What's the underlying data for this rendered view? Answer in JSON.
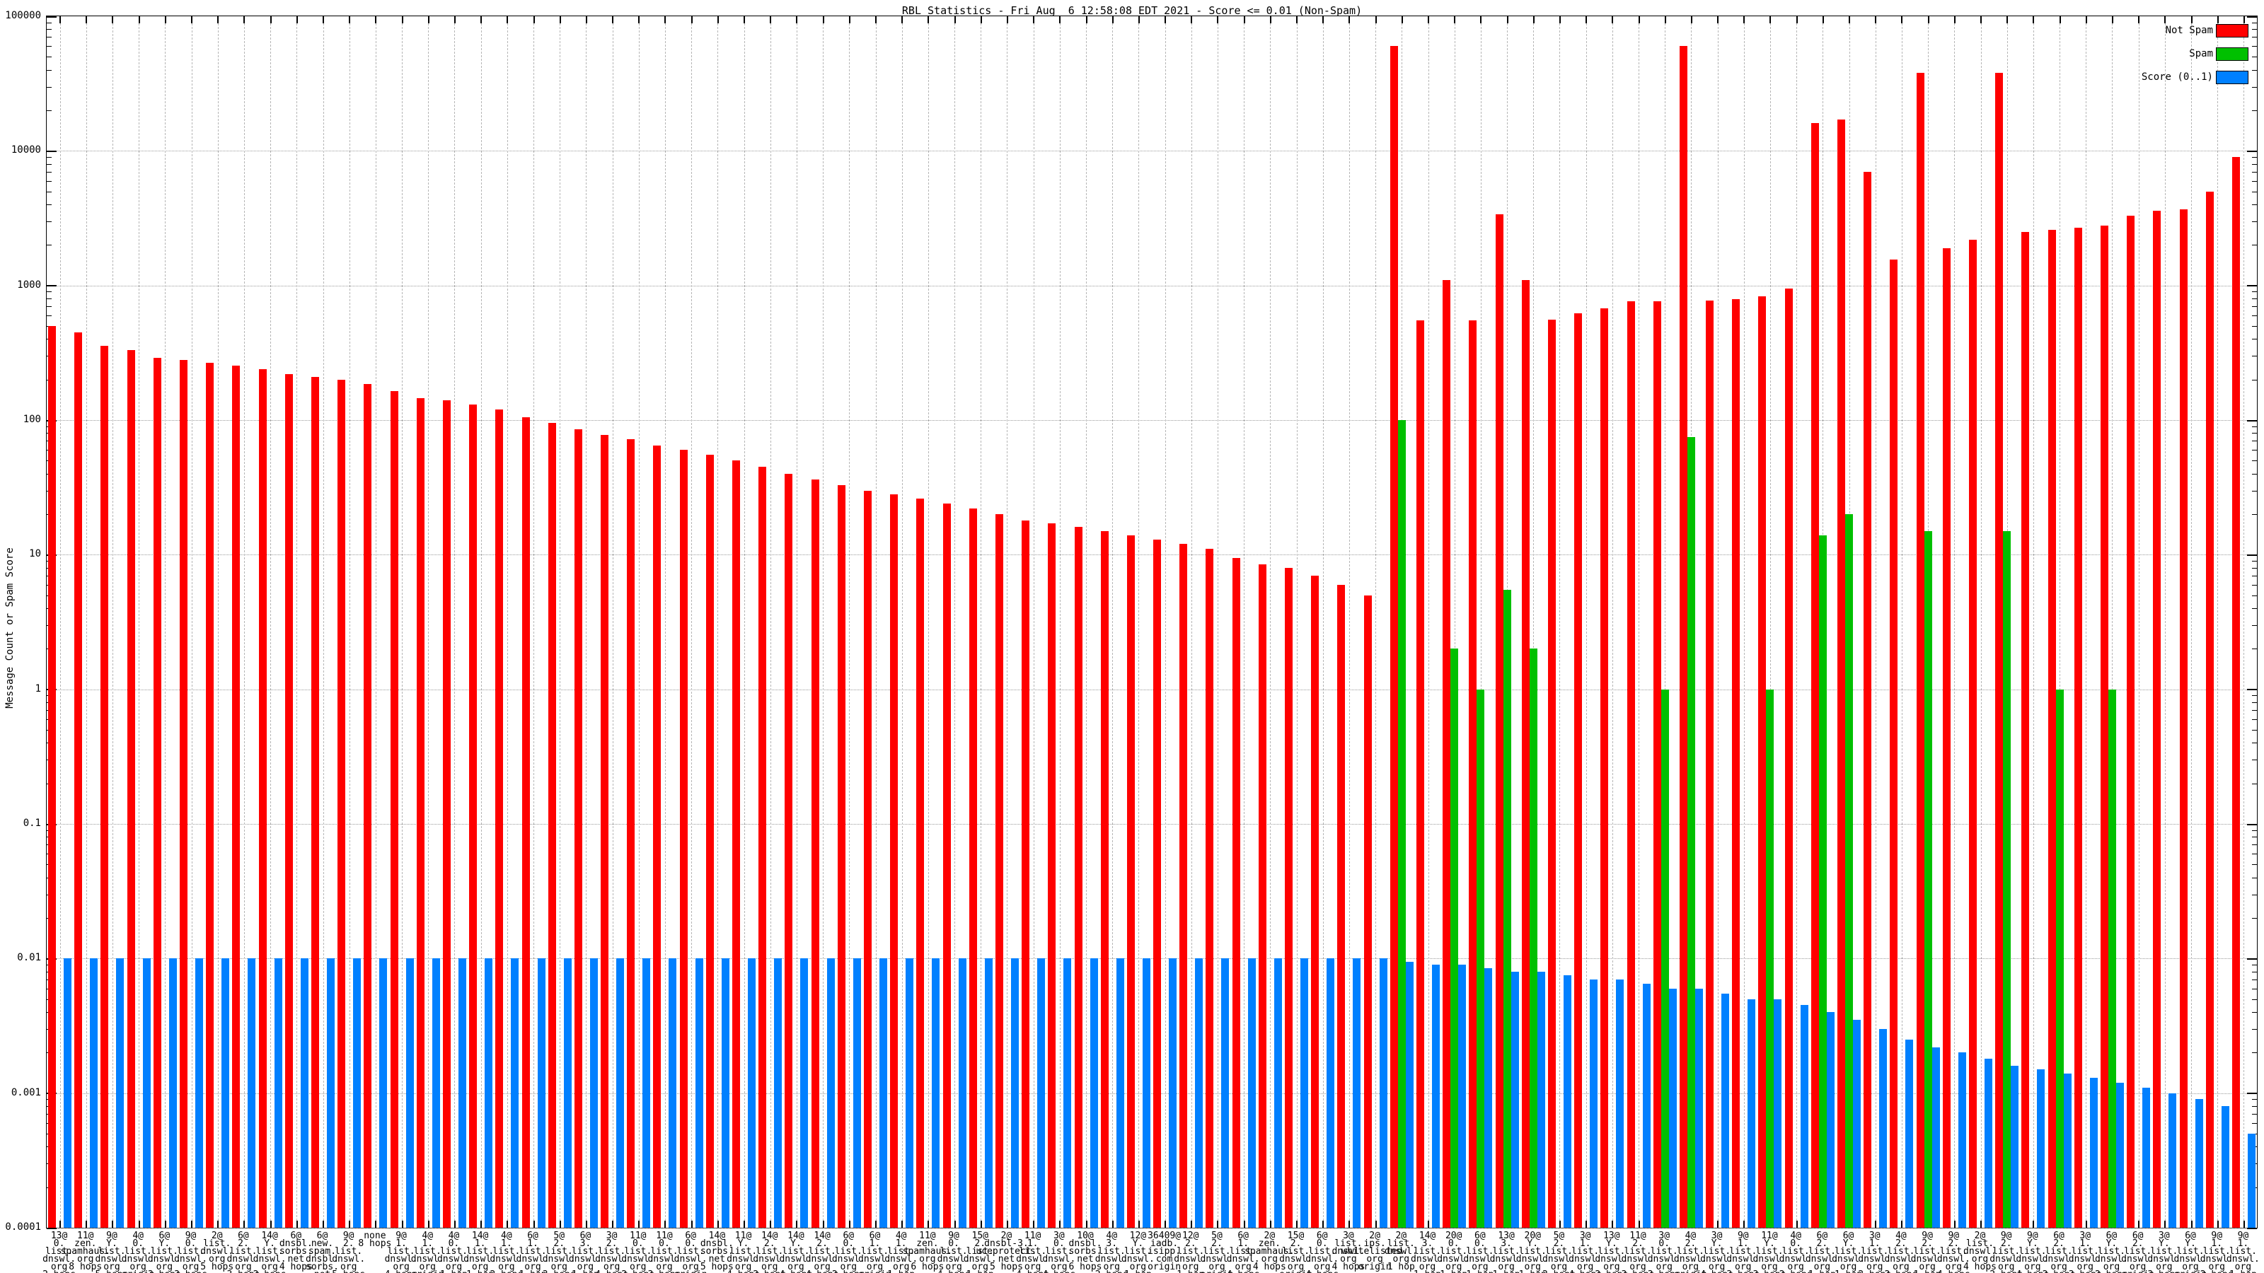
{
  "title": "RBL Statistics - Fri Aug  6 12:58:08 EDT 2021 - Score <= 0.01 (Non-Spam)",
  "y_axis": {
    "label": "Message Count or Spam Score",
    "tick_labels": [
      "100000",
      "10000",
      "1000",
      "100",
      "10",
      "1",
      "0.1",
      "0.01",
      "0.001",
      "0.0001"
    ]
  },
  "legend": [
    {
      "label": "Not Spam",
      "color": "#ff0000"
    },
    {
      "label": "Spam",
      "color": "#00c000"
    },
    {
      "label": "Score (0..1)",
      "color": "#0080ff"
    }
  ],
  "colors": {
    "not_spam": "#ff0000",
    "spam": "#00c000",
    "score": "#0080ff",
    "grid": "#9a9a9a",
    "background": "#ffffff",
    "axis": "#000000"
  },
  "chart_data": {
    "type": "bar",
    "y_scale": "log",
    "ylim": [
      0.0001,
      100000
    ],
    "grid": true,
    "legend_position": "top-right",
    "series_names": [
      "Not Spam",
      "Spam",
      "Score (0..1)"
    ],
    "groups": [
      {
        "label": "13@\n0.\nlist.\ndnswl.\norg\n2 hops",
        "not_spam": 500,
        "spam": 0,
        "score": 0.01
      },
      {
        "label": "11@\nzen.\nspamhaus.\norg\n8 hops",
        "not_spam": 450,
        "spam": 0,
        "score": 0.01
      },
      {
        "label": "9@\nY.\nlist.\ndnswl.\norg\n5 hops",
        "not_spam": 355,
        "spam": 0,
        "score": 0.01
      },
      {
        "label": "4@\n0.\nlist.\ndnswl.\norg\norigin",
        "not_spam": 330,
        "spam": 0,
        "score": 0.01
      },
      {
        "label": "6@\nY.\nlist.\ndnswl.\norg\n3 hops",
        "not_spam": 290,
        "spam": 0,
        "score": 0.01
      },
      {
        "label": "9@\n0.\nlist.\ndnswl.\norg\n3 hops",
        "not_spam": 280,
        "spam": 0,
        "score": 0.01
      },
      {
        "label": "2@\nlist.\ndnswl.\norg\n5 hops",
        "not_spam": 265,
        "spam": 0,
        "score": 0.01
      },
      {
        "label": "6@\n2.\nlist.\ndnswl.\norg\n3 hops",
        "not_spam": 255,
        "spam": 0,
        "score": 0.01
      },
      {
        "label": "14@\nY.\nlist.\ndnswl.\norg\n2 hops",
        "not_spam": 240,
        "spam": 0,
        "score": 0.01
      },
      {
        "label": "6@\ndnsbl.\nsorbs.\nnet\n4 hops",
        "not_spam": 220,
        "spam": 0,
        "score": 0.01
      },
      {
        "label": "6@\nnew.\nspam.\ndnsbl.\nsorbs.\nnet\n4 hops",
        "not_spam": 210,
        "spam": 0,
        "score": 0.01
      },
      {
        "label": "9@\n2.\nlist.\ndnswl.\norg\n5 hops",
        "not_spam": 200,
        "spam": 0,
        "score": 0.01
      },
      {
        "label": "none\n8 hops",
        "not_spam": 185,
        "spam": 0,
        "score": 0.01
      },
      {
        "label": "9@\n1.\nlist.\ndnswl.\norg\n4 hops",
        "not_spam": 165,
        "spam": 0,
        "score": 0.01
      },
      {
        "label": "4@\n1.\nlist.\ndnswl.\norg\norigin",
        "not_spam": 145,
        "spam": 0,
        "score": 0.01
      },
      {
        "label": "4@\n0.\nlist.\ndnswl.\norg\n1 hop",
        "not_spam": 140,
        "spam": 0,
        "score": 0.01
      },
      {
        "label": "14@\n1.\nlist.\ndnswl.\norg\n1 hop",
        "not_spam": 130,
        "spam": 0,
        "score": 0.01
      },
      {
        "label": "4@\n1.\nlist.\ndnswl.\norg\n2 hops",
        "not_spam": 120,
        "spam": 0,
        "score": 0.01
      },
      {
        "label": "6@\n1.\nlist.\ndnswl.\norg\n1 hop",
        "not_spam": 105,
        "spam": 0,
        "score": 0.01
      },
      {
        "label": "5@\n2.\nlist.\ndnswl.\norg\n3 hops",
        "not_spam": 95,
        "spam": 0,
        "score": 0.01
      },
      {
        "label": "6@\n3.\nlist.\ndnswl.\norg\n1 hop",
        "not_spam": 85,
        "spam": 0,
        "score": 0.01
      },
      {
        "label": "3@\n2.\nlist.\ndnswl.\norg\n4 hops",
        "not_spam": 78,
        "spam": 0,
        "score": 0.01
      },
      {
        "label": "11@\n0.\nlist.\ndnswl.\norg\n2 hops",
        "not_spam": 72,
        "spam": 0,
        "score": 0.01
      },
      {
        "label": "11@\n0.\nlist.\ndnswl.\norg\n3 hops",
        "not_spam": 65,
        "spam": 0,
        "score": 0.01
      },
      {
        "label": "6@\n0.\nlist.\ndnswl.\norg\norigin",
        "not_spam": 60,
        "spam": 0,
        "score": 0.01
      },
      {
        "label": "14@\ndnsbl.\nsorbs.\nnet\n5 hops",
        "not_spam": 55,
        "spam": 0,
        "score": 0.01
      },
      {
        "label": "11@\nY.\nlist.\ndnswl.\norg\n4 hops",
        "not_spam": 50,
        "spam": 0,
        "score": 0.01
      },
      {
        "label": "14@\n2.\nlist.\ndnswl.\norg\n2 hops",
        "not_spam": 45,
        "spam": 0,
        "score": 0.01
      },
      {
        "label": "14@\nY.\nlist.\ndnswl.\norg\n4 hops",
        "not_spam": 40,
        "spam": 0,
        "score": 0.01
      },
      {
        "label": "14@\n2.\nlist.\ndnswl.\norg\n4 hops",
        "not_spam": 36,
        "spam": 0,
        "score": 0.01
      },
      {
        "label": "6@\n0.\nlist.\ndnswl.\norg\n2 hops",
        "not_spam": 33,
        "spam": 0,
        "score": 0.01
      },
      {
        "label": "6@\n1.\nlist.\ndnswl.\norg\norigin",
        "not_spam": 30,
        "spam": 0,
        "score": 0.01
      },
      {
        "label": "4@\n1.\nlist.\ndnswl.\norg\n1 hop",
        "not_spam": 28,
        "spam": 0,
        "score": 0.01
      },
      {
        "label": "11@\nzen.\nspamhaus.\norg\n6 hops",
        "not_spam": 26,
        "spam": 0,
        "score": 0.01
      },
      {
        "label": "9@\n0.\nlist.\ndnswl.\norg\n4 hops",
        "not_spam": 24,
        "spam": 0,
        "score": 0.01
      },
      {
        "label": "15@\n2.\nlist.\ndnswl.\norg\n1 hop",
        "not_spam": 22,
        "spam": 0,
        "score": 0.01
      },
      {
        "label": "2@\ndnsbl-3.\nuceprotect.\nnet\n5 hops",
        "not_spam": 20,
        "spam": 0,
        "score": 0.01
      },
      {
        "label": "11@\n1.\nlist.\ndnswl.\norg\n4 hops",
        "not_spam": 18,
        "spam": 0,
        "score": 0.01
      },
      {
        "label": "3@\n0.\nlist.\ndnswl.\norg\n4 hops",
        "not_spam": 17,
        "spam": 0,
        "score": 0.01
      },
      {
        "label": "10@\ndnsbl.\nsorbs.\nnet\n6 hops",
        "not_spam": 16,
        "spam": 0,
        "score": 0.01
      },
      {
        "label": "4@\n3.\nlist.\ndnswl.\norg\n2 hops",
        "not_spam": 15,
        "spam": 0,
        "score": 0.01
      },
      {
        "label": "12@\nY.\nlist.\ndnswl.\norg\n1 hop",
        "not_spam": 14,
        "spam": 0,
        "score": 0.01
      },
      {
        "label": "36409@\niadb.\nisipp.\ncom\norigin",
        "not_spam": 13,
        "spam": 0,
        "score": 0.01
      },
      {
        "label": "12@\n2.\nlist.\ndnswl.\norg\n1 hop",
        "not_spam": 12,
        "spam": 0,
        "score": 0.01
      },
      {
        "label": "5@\n2.\nlist.\ndnswl.\norg\norigin",
        "not_spam": 11,
        "spam": 0,
        "score": 0.01
      },
      {
        "label": "6@\n1.\nlist.\ndnswl.\norg\n4 hops",
        "not_spam": 9.5,
        "spam": 0,
        "score": 0.01
      },
      {
        "label": "2@\nzen.\nspamhaus.\norg\n4 hops",
        "not_spam": 8.5,
        "spam": 0,
        "score": 0.01
      },
      {
        "label": "15@\n2.\nlist.\ndnswl.\norg\norigin",
        "not_spam": 8,
        "spam": 0,
        "score": 0.01
      },
      {
        "label": "6@\n0.\nlist.\ndnswl.\norg\n4 hops",
        "not_spam": 7,
        "spam": 0,
        "score": 0.01
      },
      {
        "label": "3@\nlist.\ndnswl.\norg\n4 hops",
        "not_spam": 6,
        "spam": 0,
        "score": 0.01
      },
      {
        "label": "2@\nips.\nwhitelisted.\norg\norigin",
        "not_spam": 5,
        "spam": 0,
        "score": 0.01
      },
      {
        "label": "2@\nlist.\ndnswl.\norg\n1 hop",
        "not_spam": 60000,
        "spam": 100,
        "score": 0.0095
      },
      {
        "label": "14@\n3.\nlist.\ndnswl.\norg\n1 hop",
        "not_spam": 550,
        "spam": 0,
        "score": 0.009
      },
      {
        "label": "20@\n0.\nlist.\ndnswl.\norg\n1 hop",
        "not_spam": 1100,
        "spam": 2,
        "score": 0.009
      },
      {
        "label": "6@\n0.\nlist.\ndnswl.\norg\n1 hop",
        "not_spam": 550,
        "spam": 1,
        "score": 0.0085
      },
      {
        "label": "13@\n3.\nlist.\ndnswl.\norg\n1 hop",
        "not_spam": 3400,
        "spam": 5.5,
        "score": 0.008
      },
      {
        "label": "20@\nY.\nlist.\ndnswl.\norg\n1 hop",
        "not_spam": 1100,
        "spam": 2,
        "score": 0.008
      },
      {
        "label": "5@\n2.\nlist.\ndnswl.\norg\n2 hops",
        "not_spam": 560,
        "spam": 0,
        "score": 0.0075
      },
      {
        "label": "3@\n1.\nlist.\ndnswl.\norg\n4 hops",
        "not_spam": 620,
        "spam": 0,
        "score": 0.007
      },
      {
        "label": "13@\nY.\nlist.\ndnswl.\norg\n2 hops",
        "not_spam": 680,
        "spam": 0,
        "score": 0.007
      },
      {
        "label": "11@\n2.\nlist.\ndnswl.\norg\n3 hops",
        "not_spam": 760,
        "spam": 0,
        "score": 0.0065
      },
      {
        "label": "3@\n0.\nlist.\ndnswl.\norg\n3 hops",
        "not_spam": 760,
        "spam": 1,
        "score": 0.006
      },
      {
        "label": "4@\n2.\nlist.\ndnswl.\norg\norigin",
        "not_spam": 60000,
        "spam": 75,
        "score": 0.006
      },
      {
        "label": "3@\nY.\nlist.\ndnswl.\norg\n4 hops",
        "not_spam": 770,
        "spam": 0,
        "score": 0.0055
      },
      {
        "label": "9@\n1.\nlist.\ndnswl.\norg\n3 hops",
        "not_spam": 790,
        "spam": 0,
        "score": 0.005
      },
      {
        "label": "11@\nY.\nlist.\ndnswl.\norg\n3 hops",
        "not_spam": 830,
        "spam": 1,
        "score": 0.005
      },
      {
        "label": "4@\n0.\nlist.\ndnswl.\norg\n2 hops",
        "not_spam": 950,
        "spam": 0,
        "score": 0.0045
      },
      {
        "label": "6@\n2.\nlist.\ndnswl.\norg\n1 hop",
        "not_spam": 16000,
        "spam": 14,
        "score": 0.004
      },
      {
        "label": "6@\nY.\nlist.\ndnswl.\norg\n1 hop",
        "not_spam": 17000,
        "spam": 20,
        "score": 0.0035
      },
      {
        "label": "3@\n1.\nlist.\ndnswl.\norg\n2 hops",
        "not_spam": 7000,
        "spam": 0,
        "score": 0.003
      },
      {
        "label": "4@\n2.\nlist.\ndnswl.\norg\n2 hops",
        "not_spam": 1550,
        "spam": 0,
        "score": 0.0025
      },
      {
        "label": "9@\n2.\nlist.\ndnswl.\norg\n1 hop",
        "not_spam": 38000,
        "spam": 15,
        "score": 0.0022
      },
      {
        "label": "9@\n2.\nlist.\ndnswl.\norg\n4 hops",
        "not_spam": 1900,
        "spam": 0,
        "score": 0.002
      },
      {
        "label": "2@\nlist.\ndnswl.\norg\n4 hops",
        "not_spam": 2200,
        "spam": 0,
        "score": 0.0018
      },
      {
        "label": "9@\n2.\nlist.\ndnswl.\norg\n2 hops",
        "not_spam": 38000,
        "spam": 15,
        "score": 0.0016
      },
      {
        "label": "9@\nY.\nlist.\ndnswl.\norg\n4 hops",
        "not_spam": 2500,
        "spam": 0,
        "score": 0.0015
      },
      {
        "label": "6@\n2.\nlist.\ndnswl.\norg\n2 hops",
        "not_spam": 2600,
        "spam": 1,
        "score": 0.0014
      },
      {
        "label": "3@\n1.\nlist.\ndnswl.\norg\n3 hops",
        "not_spam": 2700,
        "spam": 0,
        "score": 0.0013
      },
      {
        "label": "6@\nY.\nlist.\ndnswl.\norg\n2 hops",
        "not_spam": 2800,
        "spam": 1,
        "score": 0.0012
      },
      {
        "label": "6@\n2.\nlist.\ndnswl.\norg\norigin",
        "not_spam": 3300,
        "spam": 0,
        "score": 0.0011
      },
      {
        "label": "3@\nY.\nlist.\ndnswl.\norg\n3 hops",
        "not_spam": 3600,
        "spam": 0,
        "score": 0.001
      },
      {
        "label": "6@\nY.\nlist.\ndnswl.\norg\norigin",
        "not_spam": 3700,
        "spam": 0,
        "score": 0.0009
      },
      {
        "label": "9@\n1.\nlist.\ndnswl.\norg\n2 hops",
        "not_spam": 5000,
        "spam": 0,
        "score": 0.0008
      },
      {
        "label": "9@\n1.\nlist.\ndnswl.\norg\n1 hop",
        "not_spam": 9000,
        "spam": 0,
        "score": 0.0005
      }
    ]
  }
}
